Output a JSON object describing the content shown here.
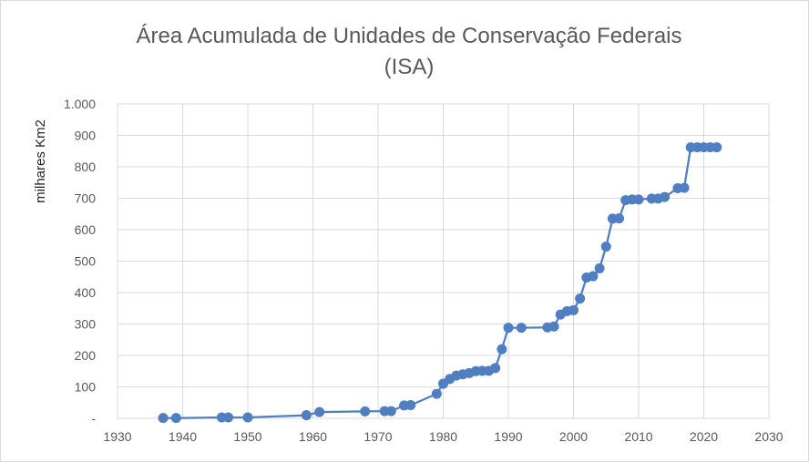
{
  "chart_data": {
    "type": "line",
    "title_line1": "Área Acumulada de Unidades de Conservação Federais",
    "title_line2": "(ISA)",
    "ylabel": "milhares Km2",
    "xlabel": "",
    "xlim": [
      1930,
      2030
    ],
    "ylim": [
      0,
      1000
    ],
    "x_ticks": [
      1930,
      1940,
      1950,
      1960,
      1970,
      1980,
      1990,
      2000,
      2010,
      2020,
      2030
    ],
    "x_tick_labels": [
      "1930",
      "1940",
      "1950",
      "1960",
      "1970",
      "1980",
      "1990",
      "2000",
      "2010",
      "2020",
      "2030"
    ],
    "y_ticks": [
      0,
      100,
      200,
      300,
      400,
      500,
      600,
      700,
      800,
      900,
      1000
    ],
    "y_tick_labels": [
      "-",
      "100",
      "200",
      "300",
      "400",
      "500",
      "600",
      "700",
      "800",
      "900",
      "1.000"
    ],
    "grid": true,
    "legend": "none",
    "color": "#4f7ec1",
    "series": [
      {
        "x": [
          1937,
          1939,
          1946,
          1947,
          1950,
          1959,
          1961,
          1968,
          1971,
          1972,
          1974,
          1975,
          1979,
          1980,
          1981,
          1982,
          1983,
          1984,
          1985,
          1986,
          1987,
          1988,
          1989,
          1990,
          1992,
          1996,
          1997,
          1998,
          1999,
          2000,
          2001,
          2002,
          2003,
          2004,
          2005,
          2006,
          2007,
          2008,
          2009,
          2010,
          2012,
          2013,
          2014,
          2016,
          2017,
          2018,
          2019,
          2020,
          2021,
          2022
        ],
        "y": [
          1,
          1,
          3,
          3,
          3,
          10,
          20,
          22,
          23,
          23,
          41,
          42,
          78,
          110,
          125,
          136,
          140,
          144,
          150,
          151,
          151,
          160,
          220,
          288,
          288,
          289,
          292,
          330,
          341,
          344,
          381,
          448,
          452,
          477,
          546,
          635,
          636,
          694,
          696,
          696,
          699,
          699,
          704,
          732,
          733,
          862,
          862,
          862,
          862,
          862
        ]
      }
    ]
  }
}
